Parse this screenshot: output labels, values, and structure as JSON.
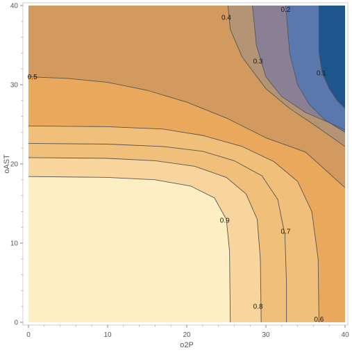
{
  "chart_data": {
    "type": "contour",
    "title": "",
    "xlabel": "o2P",
    "ylabel": "oAST",
    "xlim": [
      0,
      40
    ],
    "ylim": [
      0,
      40
    ],
    "x_ticks": [
      "0",
      "10",
      "20",
      "30",
      "40"
    ],
    "y_ticks": [
      "0",
      "10",
      "20",
      "30",
      "40"
    ],
    "grid": false,
    "colors": {
      "level_1": "#1f558d",
      "level_2": "#5a78ad",
      "level_3": "#8a8095",
      "level_4": "#b39474",
      "level_5": "#d29a5e",
      "level_6": "#e9a85b",
      "level_7": "#f0bf79",
      "level_8": "#f7d59d",
      "level_9": "#fdefc3",
      "contour_line": "#555555"
    },
    "contour_levels": [
      {
        "level": 0.1,
        "label": "0.1",
        "label_at": [
          37,
          31.5
        ],
        "path": [
          [
            36.7,
            40
          ],
          [
            36.7,
            34
          ],
          [
            37.1,
            31.5
          ],
          [
            38,
            29.5
          ],
          [
            39,
            28
          ],
          [
            40,
            27
          ]
        ]
      },
      {
        "level": 0.2,
        "label": "0.2",
        "label_at": [
          32.5,
          39.5
        ],
        "path": [
          [
            32.5,
            40
          ],
          [
            33,
            34
          ],
          [
            34,
            30
          ],
          [
            35.5,
            27.5
          ],
          [
            37.5,
            25.5
          ],
          [
            40,
            24
          ]
        ]
      },
      {
        "level": 0.3,
        "label": "0.3",
        "label_at": [
          29,
          33
        ],
        "path": [
          [
            28.3,
            40
          ],
          [
            28.8,
            35
          ],
          [
            30,
            31
          ],
          [
            32,
            28.5
          ],
          [
            35,
            26.5
          ],
          [
            38.5,
            25
          ],
          [
            40,
            24.3
          ]
        ]
      },
      {
        "level": 0.4,
        "label": "0.4",
        "label_at": [
          25,
          38.5
        ],
        "path": [
          [
            25.2,
            40
          ],
          [
            25.5,
            37
          ],
          [
            27,
            33.5
          ],
          [
            30,
            29.5
          ],
          [
            33,
            27
          ],
          [
            36,
            25
          ],
          [
            40,
            22.2
          ]
        ]
      },
      {
        "level": 0.5,
        "label": "0.5",
        "label_at": [
          0.5,
          31
        ],
        "path": [
          [
            0,
            31
          ],
          [
            5,
            30.8
          ],
          [
            10,
            30.3
          ],
          [
            15,
            29.3
          ],
          [
            20,
            27.8
          ],
          [
            25,
            25.8
          ],
          [
            30,
            23.3
          ],
          [
            35,
            21.5
          ],
          [
            40,
            17
          ]
        ]
      },
      {
        "level": 0.6,
        "label": "0.6",
        "label_at": [
          36.7,
          0.4
        ],
        "path": [
          [
            0,
            24.8
          ],
          [
            10,
            24.7
          ],
          [
            17,
            24.4
          ],
          [
            22,
            23.6
          ],
          [
            27,
            22.2
          ],
          [
            31,
            20.3
          ],
          [
            34,
            17.8
          ],
          [
            35.8,
            14
          ],
          [
            36.6,
            8
          ],
          [
            36.7,
            0
          ]
        ]
      },
      {
        "level": 0.7,
        "label": "0.7",
        "label_at": [
          32.5,
          11.5
        ],
        "path": [
          [
            0,
            22.6
          ],
          [
            10,
            22.5
          ],
          [
            17,
            22.2
          ],
          [
            22,
            21.6
          ],
          [
            26,
            20.4
          ],
          [
            29.5,
            18.5
          ],
          [
            31.5,
            15.5
          ],
          [
            32.4,
            11
          ],
          [
            32.6,
            5
          ],
          [
            32.6,
            0
          ]
        ]
      },
      {
        "level": 0.8,
        "label": "0.8",
        "label_at": [
          29,
          2
        ],
        "path": [
          [
            0,
            20.8
          ],
          [
            10,
            20.7
          ],
          [
            16,
            20.4
          ],
          [
            21,
            19.7
          ],
          [
            25,
            18.3
          ],
          [
            27.5,
            16.2
          ],
          [
            28.9,
            13
          ],
          [
            29.3,
            8
          ],
          [
            29.4,
            0
          ]
        ]
      },
      {
        "level": 0.9,
        "label": "0.9",
        "label_at": [
          24.8,
          12.9
        ],
        "path": [
          [
            0,
            18.4
          ],
          [
            10,
            18.3
          ],
          [
            16,
            18
          ],
          [
            20.5,
            17.2
          ],
          [
            23.5,
            15.7
          ],
          [
            25,
            13
          ],
          [
            25.4,
            9
          ],
          [
            25.5,
            0
          ]
        ]
      }
    ]
  }
}
